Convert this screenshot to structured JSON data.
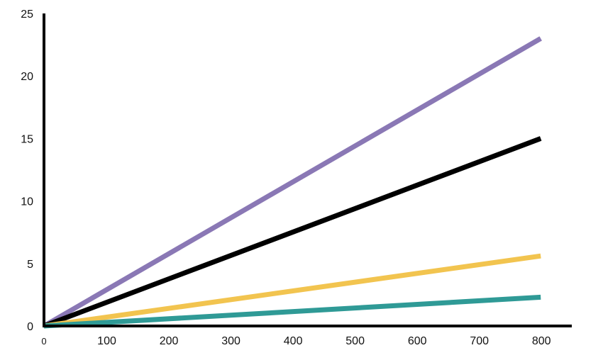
{
  "chart_data": {
    "type": "line",
    "title": "",
    "xlabel": "",
    "ylabel": "",
    "xlim": [
      0,
      850
    ],
    "ylim": [
      0,
      25
    ],
    "x_ticks": [
      {
        "value": 0,
        "label": "0"
      },
      {
        "value": 100,
        "label": "100"
      },
      {
        "value": 200,
        "label": "200"
      },
      {
        "value": 300,
        "label": "300"
      },
      {
        "value": 400,
        "label": "400"
      },
      {
        "value": 500,
        "label": "500"
      },
      {
        "value": 600,
        "label": "600"
      },
      {
        "value": 700,
        "label": "700"
      },
      {
        "value": 800,
        "label": "800"
      }
    ],
    "y_ticks": [
      {
        "value": 0,
        "label": "0"
      },
      {
        "value": 5,
        "label": "5"
      },
      {
        "value": 10,
        "label": "10"
      },
      {
        "value": 15,
        "label": "15"
      },
      {
        "value": 20,
        "label": "20"
      },
      {
        "value": 25,
        "label": "25"
      }
    ],
    "grid": false,
    "legend": "none",
    "series": [
      {
        "color": "#8a78b5",
        "x": [
          0,
          800
        ],
        "y": [
          0,
          23
        ]
      },
      {
        "color": "#000000",
        "x": [
          0,
          800
        ],
        "y": [
          0,
          15
        ]
      },
      {
        "color": "#f2c44f",
        "x": [
          0,
          800
        ],
        "y": [
          0,
          5.6
        ]
      },
      {
        "color": "#2f9a96",
        "x": [
          0,
          800
        ],
        "y": [
          0,
          2.3
        ]
      }
    ]
  }
}
